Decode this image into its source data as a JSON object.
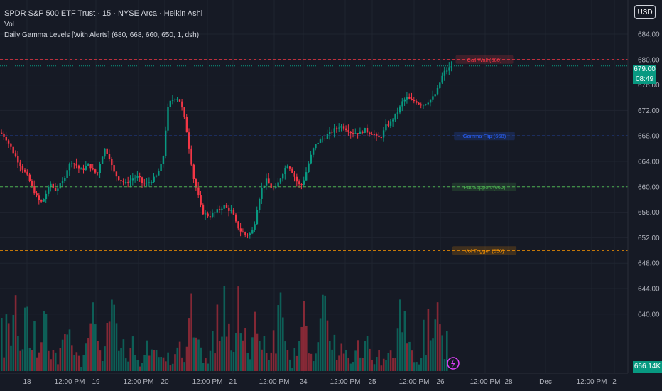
{
  "header": {
    "title": "SPDR S&P 500 ETF Trust · 15 · NYSE Arca · Heikin Ashi",
    "vol_label": "Vol",
    "indicator_label": "Daily Gamma Levels [With Alerts] (680, 668, 660, 650, 1, dsh)"
  },
  "currency": "USD",
  "last_price": {
    "value": "679.00",
    "countdown": "08:49"
  },
  "volume_readout": "666.14K",
  "colors": {
    "background": "#161a25",
    "bull": "#089981",
    "bear": "#f23645",
    "call_wall": "#f23645",
    "gamma_flip": "#2962ff",
    "put_support": "#4caf50",
    "vol_trigger": "#ff9800"
  },
  "chart_data": {
    "type": "candlestick",
    "style": "Heikin Ashi",
    "y_axis_ticks": [
      "684.00",
      "680.00",
      "676.00",
      "672.00",
      "668.00",
      "664.00",
      "660.00",
      "656.00",
      "652.00",
      "648.00",
      "644.00",
      "640.00"
    ],
    "ylim": [
      638,
      686
    ],
    "x_axis_ticks": [
      "18",
      "12:00 PM",
      "19",
      "12:00 PM",
      "20",
      "12:00 PM",
      "21",
      "12:00 PM",
      "24",
      "12:00 PM",
      "25",
      "12:00 PM",
      "26",
      "12:00 PM",
      "28",
      "Dec",
      "12:00 PM",
      "2"
    ],
    "levels": [
      {
        "label": "Call Wall (680)",
        "value": 680,
        "color": "#f23645"
      },
      {
        "label": "Gamma Flip (668)",
        "value": 668,
        "color": "#2962ff"
      },
      {
        "label": "Put Support (660)",
        "value": 660,
        "color": "#4caf50"
      },
      {
        "label": "Vol Trigger (650)",
        "value": 650,
        "color": "#ff9800"
      }
    ],
    "price_path": [
      [
        0,
        668.5
      ],
      [
        8,
        667.5
      ],
      [
        15,
        666
      ],
      [
        22,
        664.5
      ],
      [
        30,
        663
      ],
      [
        38,
        661.5
      ],
      [
        46,
        659.5
      ],
      [
        52,
        658
      ],
      [
        58,
        657.5
      ],
      [
        64,
        659
      ],
      [
        70,
        660.5
      ],
      [
        76,
        659.5
      ],
      [
        82,
        660
      ],
      [
        88,
        661
      ],
      [
        94,
        663
      ],
      [
        100,
        664
      ],
      [
        106,
        663.5
      ],
      [
        112,
        662.5
      ],
      [
        118,
        663
      ],
      [
        124,
        663.5
      ],
      [
        130,
        662.5
      ],
      [
        136,
        662
      ],
      [
        140,
        664
      ],
      [
        146,
        666
      ],
      [
        152,
        665
      ],
      [
        158,
        662.5
      ],
      [
        164,
        661.5
      ],
      [
        170,
        661
      ],
      [
        176,
        660.5
      ],
      [
        182,
        661
      ],
      [
        188,
        661.5
      ],
      [
        194,
        661.5
      ],
      [
        200,
        660.5
      ],
      [
        206,
        660.5
      ],
      [
        212,
        661
      ],
      [
        218,
        661.5
      ],
      [
        224,
        663
      ],
      [
        228,
        664
      ],
      [
        232,
        669
      ],
      [
        236,
        673
      ],
      [
        240,
        673.5
      ],
      [
        244,
        674
      ],
      [
        248,
        674
      ],
      [
        252,
        673.5
      ],
      [
        256,
        672
      ],
      [
        260,
        670
      ],
      [
        264,
        667
      ],
      [
        268,
        664
      ],
      [
        272,
        661
      ],
      [
        276,
        659.5
      ],
      [
        280,
        657.5
      ],
      [
        284,
        656
      ],
      [
        290,
        655.5
      ],
      [
        296,
        655.5
      ],
      [
        302,
        656
      ],
      [
        308,
        656.5
      ],
      [
        314,
        657
      ],
      [
        320,
        656.5
      ],
      [
        326,
        656
      ],
      [
        332,
        654
      ],
      [
        338,
        653
      ],
      [
        344,
        652.5
      ],
      [
        350,
        652.5
      ],
      [
        356,
        653.5
      ],
      [
        362,
        657.5
      ],
      [
        368,
        660
      ],
      [
        374,
        661
      ],
      [
        380,
        660
      ],
      [
        386,
        659.5
      ],
      [
        392,
        661
      ],
      [
        398,
        662.5
      ],
      [
        404,
        663.5
      ],
      [
        410,
        662.5
      ],
      [
        416,
        661
      ],
      [
        422,
        660
      ],
      [
        428,
        661.5
      ],
      [
        434,
        664
      ],
      [
        440,
        666
      ],
      [
        446,
        667
      ],
      [
        452,
        667.5
      ],
      [
        458,
        668
      ],
      [
        464,
        668.5
      ],
      [
        470,
        669
      ],
      [
        476,
        669.5
      ],
      [
        482,
        669.5
      ],
      [
        488,
        669
      ],
      [
        494,
        668.5
      ],
      [
        500,
        668.5
      ],
      [
        506,
        668.5
      ],
      [
        512,
        669
      ],
      [
        518,
        668.5
      ],
      [
        524,
        668.5
      ],
      [
        530,
        667.5
      ],
      [
        536,
        668
      ],
      [
        542,
        669.5
      ],
      [
        548,
        670
      ],
      [
        554,
        671
      ],
      [
        560,
        672
      ],
      [
        566,
        673.5
      ],
      [
        572,
        674
      ],
      [
        578,
        673.5
      ],
      [
        584,
        673.5
      ],
      [
        590,
        673
      ],
      [
        596,
        673
      ],
      [
        602,
        673.5
      ],
      [
        608,
        674
      ],
      [
        614,
        675
      ],
      [
        620,
        677
      ],
      [
        624,
        678
      ],
      [
        630,
        678.5
      ],
      [
        634,
        679
      ]
    ],
    "volume_sample": [
      8,
      4,
      9,
      6,
      7,
      12,
      10,
      8,
      5,
      3,
      9,
      11,
      6,
      5,
      7,
      4,
      3,
      6,
      8,
      10,
      4,
      3,
      5,
      4,
      2,
      3,
      6,
      5,
      9,
      11,
      7,
      4,
      3,
      2,
      1,
      3,
      4,
      5,
      7,
      9,
      6,
      4,
      3,
      2,
      5,
      8,
      12,
      15,
      10,
      7,
      5,
      4,
      6,
      3,
      2,
      4,
      5,
      3,
      2,
      1,
      2,
      3,
      4,
      2,
      3,
      5,
      6,
      4,
      3,
      2,
      2,
      3,
      1,
      2,
      3,
      4,
      5,
      3,
      2,
      6,
      12,
      10,
      8,
      5,
      4,
      3,
      2,
      2,
      1,
      3
    ]
  }
}
